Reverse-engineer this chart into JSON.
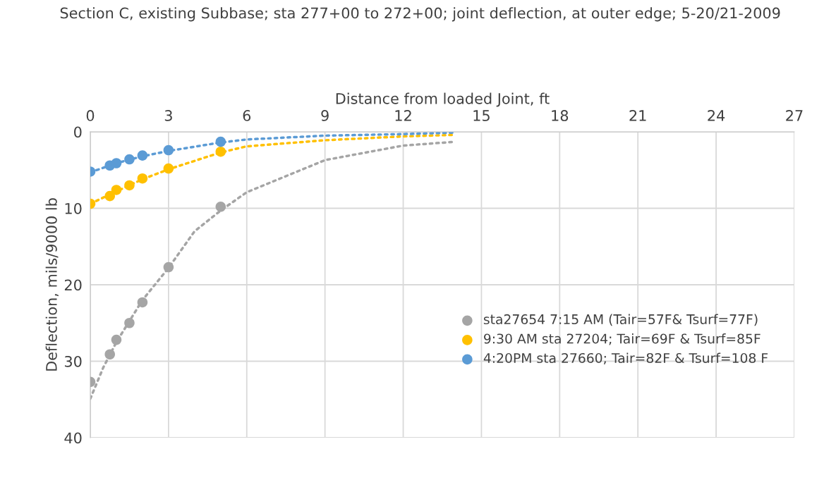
{
  "chart_data": {
    "type": "scatter",
    "title": "Section C, existing Subbase; sta 277+00 to 272+00; joint deflection, at outer edge; 5-20/21-2009",
    "xlabel": "Distance from loaded Joint, ft",
    "ylabel": "Deflection, mils/9000 lb",
    "xlim": [
      0,
      27
    ],
    "xticks": [
      0,
      3,
      6,
      9,
      12,
      15,
      18,
      21,
      24,
      27
    ],
    "ylim": [
      40,
      0
    ],
    "yticks": [
      0,
      10,
      20,
      30,
      40
    ],
    "grid": true,
    "legend": "right",
    "marker": "circle",
    "series": [
      {
        "name": "sta27654 7:15 AM (Tair=57F& Tsurf=77F)",
        "color": "#a5a5a5",
        "x": [
          0,
          0.75,
          1,
          1.5,
          2,
          3,
          5
        ],
        "values": [
          32.7,
          29.1,
          27.2,
          25.0,
          22.3,
          17.7,
          9.8
        ]
      },
      {
        "name": "9:30 AM sta 27204; Tair=69F & Tsurf=85F",
        "color": "#ffc000",
        "x": [
          0,
          0.75,
          1,
          1.5,
          2,
          3,
          5
        ],
        "values": [
          9.4,
          8.4,
          7.6,
          7.0,
          6.1,
          4.8,
          2.6
        ]
      },
      {
        "name": "4:20PM sta 27660; Tair=82F & Tsurf=108 F",
        "color": "#5b9bd5",
        "x": [
          0,
          0.75,
          1,
          1.5,
          2,
          3,
          5
        ],
        "values": [
          5.2,
          4.4,
          4.1,
          3.6,
          3.1,
          2.4,
          1.3
        ]
      },
      {
        "type": "line",
        "line_style": "dotted",
        "marker": "none",
        "color": "#a5a5a5",
        "x": [
          0,
          0.5,
          1,
          2,
          3,
          4,
          5,
          6,
          9,
          12,
          14
        ],
        "values": [
          34.9,
          30.8,
          27.5,
          22.0,
          17.8,
          13.0,
          10.3,
          7.9,
          3.7,
          1.8,
          1.3
        ]
      },
      {
        "type": "line",
        "line_style": "dotted",
        "marker": "none",
        "color": "#ffc000",
        "x": [
          0,
          1,
          2,
          3,
          5,
          6,
          9,
          12,
          14
        ],
        "values": [
          9.4,
          7.8,
          6.2,
          4.9,
          2.7,
          1.9,
          1.1,
          0.6,
          0.4
        ]
      },
      {
        "type": "line",
        "line_style": "dotted",
        "marker": "none",
        "color": "#5b9bd5",
        "x": [
          0,
          1,
          2,
          3,
          5,
          6,
          9,
          12,
          14
        ],
        "values": [
          5.3,
          4.1,
          3.2,
          2.5,
          1.4,
          1.0,
          0.5,
          0.3,
          0.1
        ]
      }
    ]
  }
}
